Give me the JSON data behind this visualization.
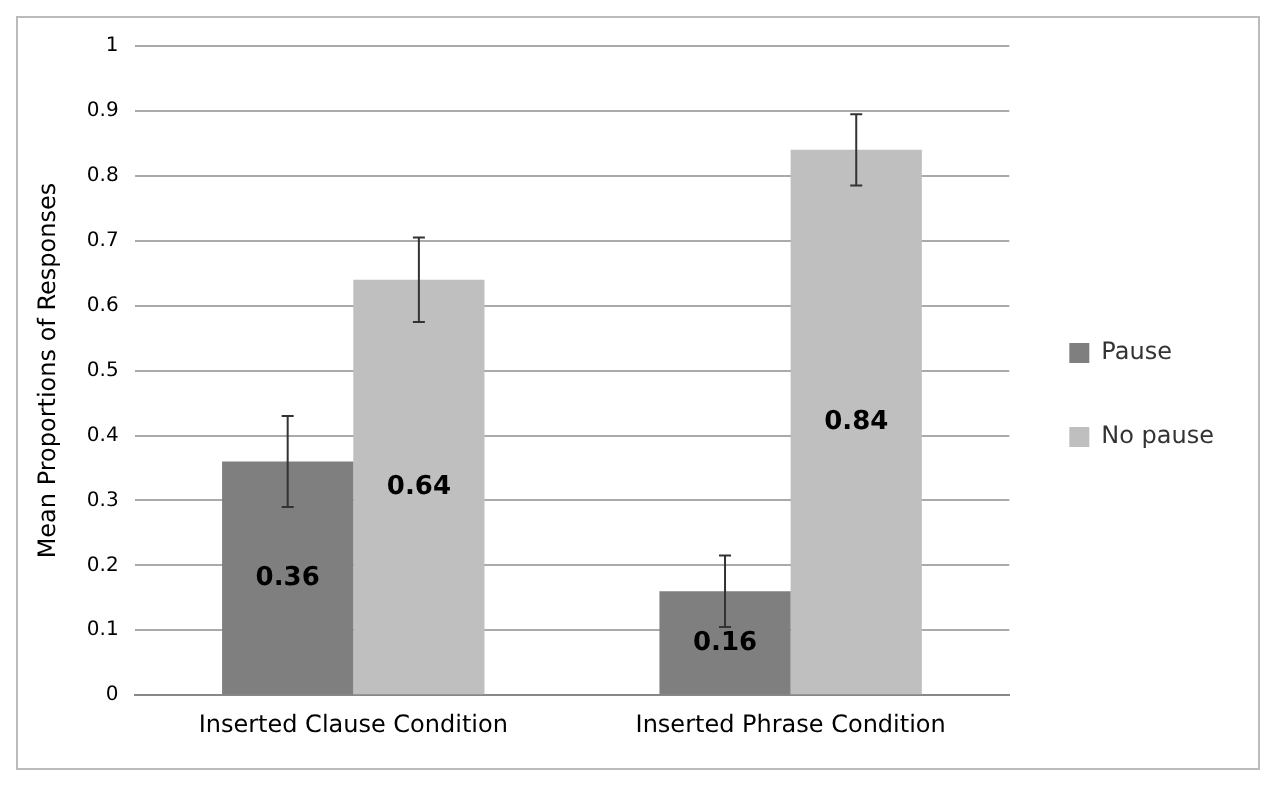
{
  "chart_data": {
    "type": "bar",
    "ylabel": "Mean Proportions of Responses",
    "categories": [
      "Inserted Clause Condition",
      "Inserted Phrase Condition"
    ],
    "series": [
      {
        "name": "Pause",
        "color": "#7f7f7f",
        "values": [
          0.36,
          0.16
        ],
        "errors": [
          0.07,
          0.055
        ]
      },
      {
        "name": "No pause",
        "color": "#bfbfbf",
        "values": [
          0.64,
          0.84
        ],
        "errors": [
          0.065,
          0.055
        ]
      }
    ],
    "ylim": [
      0,
      1
    ],
    "yticks": [
      0,
      0.1,
      0.2,
      0.3,
      0.4,
      0.5,
      0.6,
      0.7,
      0.8,
      0.9,
      1
    ],
    "grid": "y",
    "legend": "right",
    "data_labels": true
  }
}
